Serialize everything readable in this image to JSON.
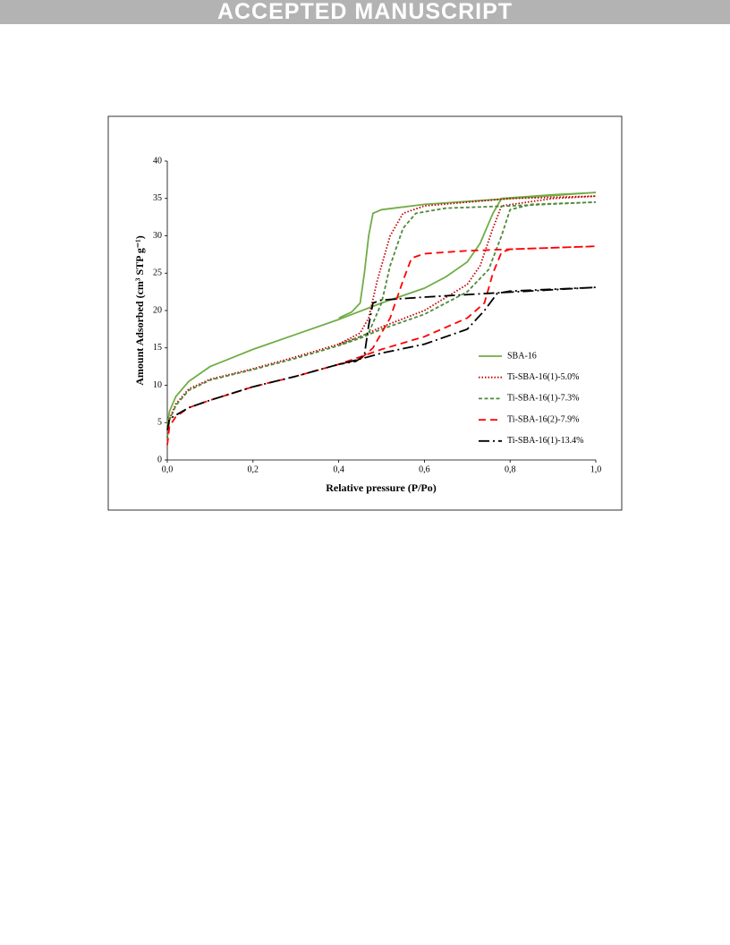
{
  "header": {
    "banner": "ACCEPTED MANUSCRIPT"
  },
  "chart_data": {
    "type": "line",
    "x_label": "Relative pressure (P/Po)",
    "y_label": "Amount Adsorbed (cm³ STP g⁻¹)",
    "xlim": [
      0,
      1
    ],
    "xticks": [
      {
        "value": 0,
        "label": "0,0"
      },
      {
        "value": 0.2,
        "label": "0,2"
      },
      {
        "value": 0.4,
        "label": "0,4"
      },
      {
        "value": 0.6,
        "label": "0,6"
      },
      {
        "value": 0.8,
        "label": "0,8"
      },
      {
        "value": 1,
        "label": "1,0"
      }
    ],
    "ylim": [
      0,
      40
    ],
    "yticks": [
      0,
      5,
      10,
      15,
      20,
      25,
      30,
      35,
      40
    ],
    "grid": false,
    "legend": "lower right",
    "series": [
      {
        "name": "SBA-16",
        "color": "#70ad47",
        "linestyle": "solid",
        "x": [
          0,
          0.005,
          0.02,
          0.05,
          0.1,
          0.2,
          0.3,
          0.4,
          0.5,
          0.6,
          0.65,
          0.7,
          0.73,
          0.76,
          0.78,
          0.9,
          1.0,
          0.8,
          0.6,
          0.5,
          0.48,
          0.47,
          0.46,
          0.45,
          0.43,
          0.4
        ],
        "values": [
          4.5,
          6.5,
          8.5,
          10.5,
          12.5,
          14.8,
          16.8,
          18.8,
          21,
          23,
          24.5,
          26.5,
          29,
          33,
          35,
          35.5,
          35.8,
          35,
          34.2,
          33.5,
          33,
          30,
          25,
          21,
          19.8,
          19
        ]
      },
      {
        "name": "Ti-SBA-16(1)-5.0%",
        "color": "#c00000",
        "linestyle": "dotted",
        "x": [
          0,
          0.005,
          0.02,
          0.05,
          0.1,
          0.2,
          0.3,
          0.4,
          0.45,
          0.5,
          0.6,
          0.7,
          0.73,
          0.76,
          0.78,
          0.9,
          1.0,
          0.8,
          0.6,
          0.55,
          0.52,
          0.49,
          0.47,
          0.45,
          0.4
        ],
        "values": [
          3,
          5.5,
          7.5,
          9.5,
          10.8,
          12.2,
          13.8,
          15.5,
          16.5,
          17.8,
          20,
          23.5,
          26,
          31,
          34,
          35,
          35.3,
          35,
          34,
          33,
          30,
          24,
          19,
          17,
          15.5
        ]
      },
      {
        "name": "Ti-SBA-16(1)-7.3%",
        "color": "#4e8a3a",
        "linestyle": "dashed",
        "x": [
          0,
          0.005,
          0.02,
          0.05,
          0.1,
          0.2,
          0.3,
          0.4,
          0.45,
          0.5,
          0.6,
          0.7,
          0.75,
          0.78,
          0.8,
          0.85,
          1.0,
          0.8,
          0.65,
          0.58,
          0.55,
          0.52,
          0.5,
          0.47,
          0.4
        ],
        "values": [
          3,
          5.3,
          7.3,
          9.3,
          10.7,
          12.1,
          13.6,
          15.3,
          16.3,
          17.5,
          19.5,
          22.5,
          25.5,
          30,
          33.5,
          34.2,
          34.5,
          34,
          33.7,
          33,
          31,
          26,
          21,
          17,
          15.3
        ]
      },
      {
        "name": "Ti-SBA-16(2)-7.9%",
        "color": "#ff0000",
        "linestyle": "longdash",
        "x": [
          0,
          0.005,
          0.02,
          0.05,
          0.1,
          0.2,
          0.3,
          0.4,
          0.45,
          0.5,
          0.6,
          0.7,
          0.74,
          0.76,
          0.78,
          0.8,
          1.0,
          0.7,
          0.6,
          0.57,
          0.55,
          0.52,
          0.48,
          0.45,
          0.4
        ],
        "values": [
          2,
          4.5,
          5.8,
          7,
          8,
          9.8,
          11.2,
          12.8,
          13.8,
          14.8,
          16.5,
          19,
          21,
          25,
          27.8,
          28.2,
          28.6,
          28,
          27.6,
          27,
          24,
          19,
          15,
          13.5,
          12.8
        ]
      },
      {
        "name": "Ti-SBA-16(1)-13.4%",
        "color": "#000000",
        "linestyle": "dashdot",
        "x": [
          0,
          0.005,
          0.02,
          0.05,
          0.1,
          0.2,
          0.3,
          0.4,
          0.45,
          0.5,
          0.6,
          0.7,
          0.74,
          0.77,
          0.8,
          1.0,
          0.75,
          0.6,
          0.5,
          0.48,
          0.47,
          0.46,
          0.44,
          0.4
        ],
        "values": [
          4,
          5.5,
          6,
          7,
          8,
          9.8,
          11.2,
          12.8,
          13.5,
          14.3,
          15.5,
          17.5,
          20,
          22.3,
          22.6,
          23.1,
          22.3,
          21.8,
          21.4,
          21,
          18,
          14,
          13.2,
          12.8
        ]
      }
    ]
  }
}
